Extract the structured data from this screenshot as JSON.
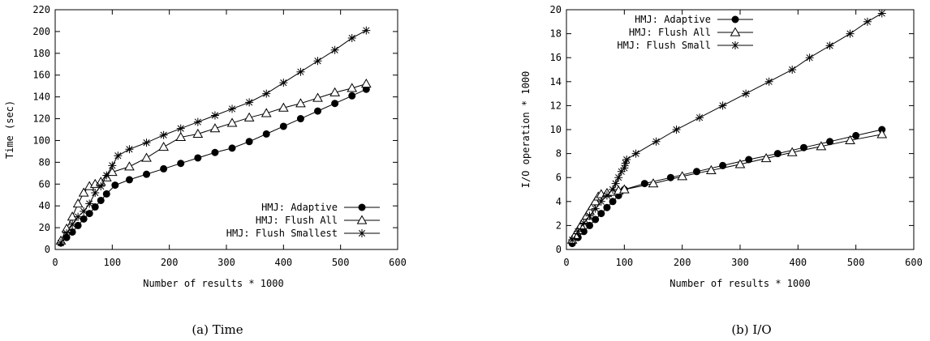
{
  "chart_data": [
    {
      "type": "line",
      "caption": "(a) Time",
      "xlabel": "Number of results * 1000",
      "ylabel": "Time (sec)",
      "xlim": [
        0,
        600
      ],
      "ylim": [
        0,
        220
      ],
      "xticks": [
        0,
        100,
        200,
        300,
        400,
        500,
        600
      ],
      "yticks": [
        0,
        20,
        40,
        60,
        80,
        100,
        120,
        140,
        160,
        180,
        200,
        220
      ],
      "grid": false,
      "legend_position": "bottom-right",
      "series": [
        {
          "name": "HMJ: Adaptive",
          "marker": "filled-circle",
          "x": [
            10,
            20,
            30,
            40,
            50,
            60,
            70,
            80,
            90,
            105,
            130,
            160,
            190,
            220,
            250,
            280,
            310,
            340,
            370,
            400,
            430,
            460,
            490,
            520,
            545
          ],
          "y": [
            6,
            11,
            16,
            22,
            28,
            33,
            39,
            45,
            51,
            59,
            64,
            69,
            74,
            79,
            84,
            89,
            93,
            99,
            106,
            113,
            120,
            127,
            134,
            141,
            147
          ]
        },
        {
          "name": "HMJ: Flush All",
          "marker": "open-triangle",
          "x": [
            10,
            20,
            30,
            40,
            50,
            60,
            70,
            80,
            90,
            100,
            130,
            160,
            190,
            220,
            250,
            280,
            310,
            340,
            370,
            400,
            430,
            460,
            490,
            520,
            545
          ],
          "y": [
            8,
            19,
            30,
            42,
            52,
            58,
            60,
            62,
            66,
            71,
            76,
            84,
            94,
            103,
            106,
            111,
            116,
            121,
            125,
            130,
            134,
            139,
            144,
            148,
            152
          ]
        },
        {
          "name": "HMJ: Flush Smallest",
          "marker": "asterisk",
          "x": [
            10,
            20,
            30,
            40,
            50,
            60,
            70,
            80,
            90,
            100,
            110,
            130,
            160,
            190,
            220,
            250,
            280,
            310,
            340,
            370,
            400,
            430,
            460,
            490,
            520,
            545
          ],
          "y": [
            6,
            15,
            23,
            30,
            35,
            42,
            52,
            58,
            68,
            77,
            86,
            92,
            98,
            105,
            111,
            117,
            123,
            129,
            135,
            143,
            153,
            163,
            173,
            183,
            194,
            201
          ]
        }
      ]
    },
    {
      "type": "line",
      "caption": "(b) I/O",
      "xlabel": "Number of results * 1000",
      "ylabel": "I/O operation * 1000",
      "xlim": [
        0,
        600
      ],
      "ylim": [
        0,
        20
      ],
      "xticks": [
        0,
        100,
        200,
        300,
        400,
        500,
        600
      ],
      "yticks": [
        0,
        2,
        4,
        6,
        8,
        10,
        12,
        14,
        16,
        18,
        20
      ],
      "grid": false,
      "legend_position": "top-left",
      "series": [
        {
          "name": "HMJ: Adaptive",
          "marker": "filled-circle",
          "x": [
            10,
            20,
            30,
            40,
            50,
            60,
            70,
            80,
            90,
            100,
            135,
            180,
            225,
            270,
            315,
            365,
            410,
            455,
            500,
            545
          ],
          "y": [
            0.5,
            1.0,
            1.5,
            2.0,
            2.5,
            3.0,
            3.5,
            4.0,
            4.5,
            5.0,
            5.5,
            6.0,
            6.5,
            7.0,
            7.5,
            8.0,
            8.5,
            9.0,
            9.5,
            10.0
          ]
        },
        {
          "name": "HMJ: Flush All",
          "marker": "open-triangle",
          "x": [
            10,
            15,
            20,
            25,
            30,
            35,
            40,
            45,
            50,
            55,
            60,
            70,
            80,
            90,
            100,
            150,
            200,
            250,
            300,
            345,
            390,
            440,
            490,
            545
          ],
          "y": [
            0.8,
            1.2,
            1.6,
            2.0,
            2.4,
            2.8,
            3.2,
            3.6,
            4.0,
            4.4,
            4.6,
            4.7,
            4.8,
            4.9,
            5.0,
            5.5,
            6.1,
            6.6,
            7.1,
            7.6,
            8.1,
            8.6,
            9.1,
            9.6
          ]
        },
        {
          "name": "HMJ: Flush Small",
          "marker": "asterisk",
          "x": [
            10,
            20,
            30,
            40,
            50,
            60,
            70,
            80,
            85,
            90,
            95,
            100,
            102,
            104,
            120,
            155,
            190,
            230,
            270,
            310,
            350,
            390,
            420,
            455,
            490,
            520,
            545
          ],
          "y": [
            0.8,
            1.5,
            2.2,
            2.8,
            3.4,
            4.0,
            4.5,
            5.0,
            5.5,
            6.0,
            6.5,
            6.8,
            7.2,
            7.5,
            8.0,
            9.0,
            10.0,
            11.0,
            12.0,
            13.0,
            14.0,
            15.0,
            16.0,
            17.0,
            18.0,
            19.0,
            19.7
          ]
        }
      ]
    }
  ]
}
